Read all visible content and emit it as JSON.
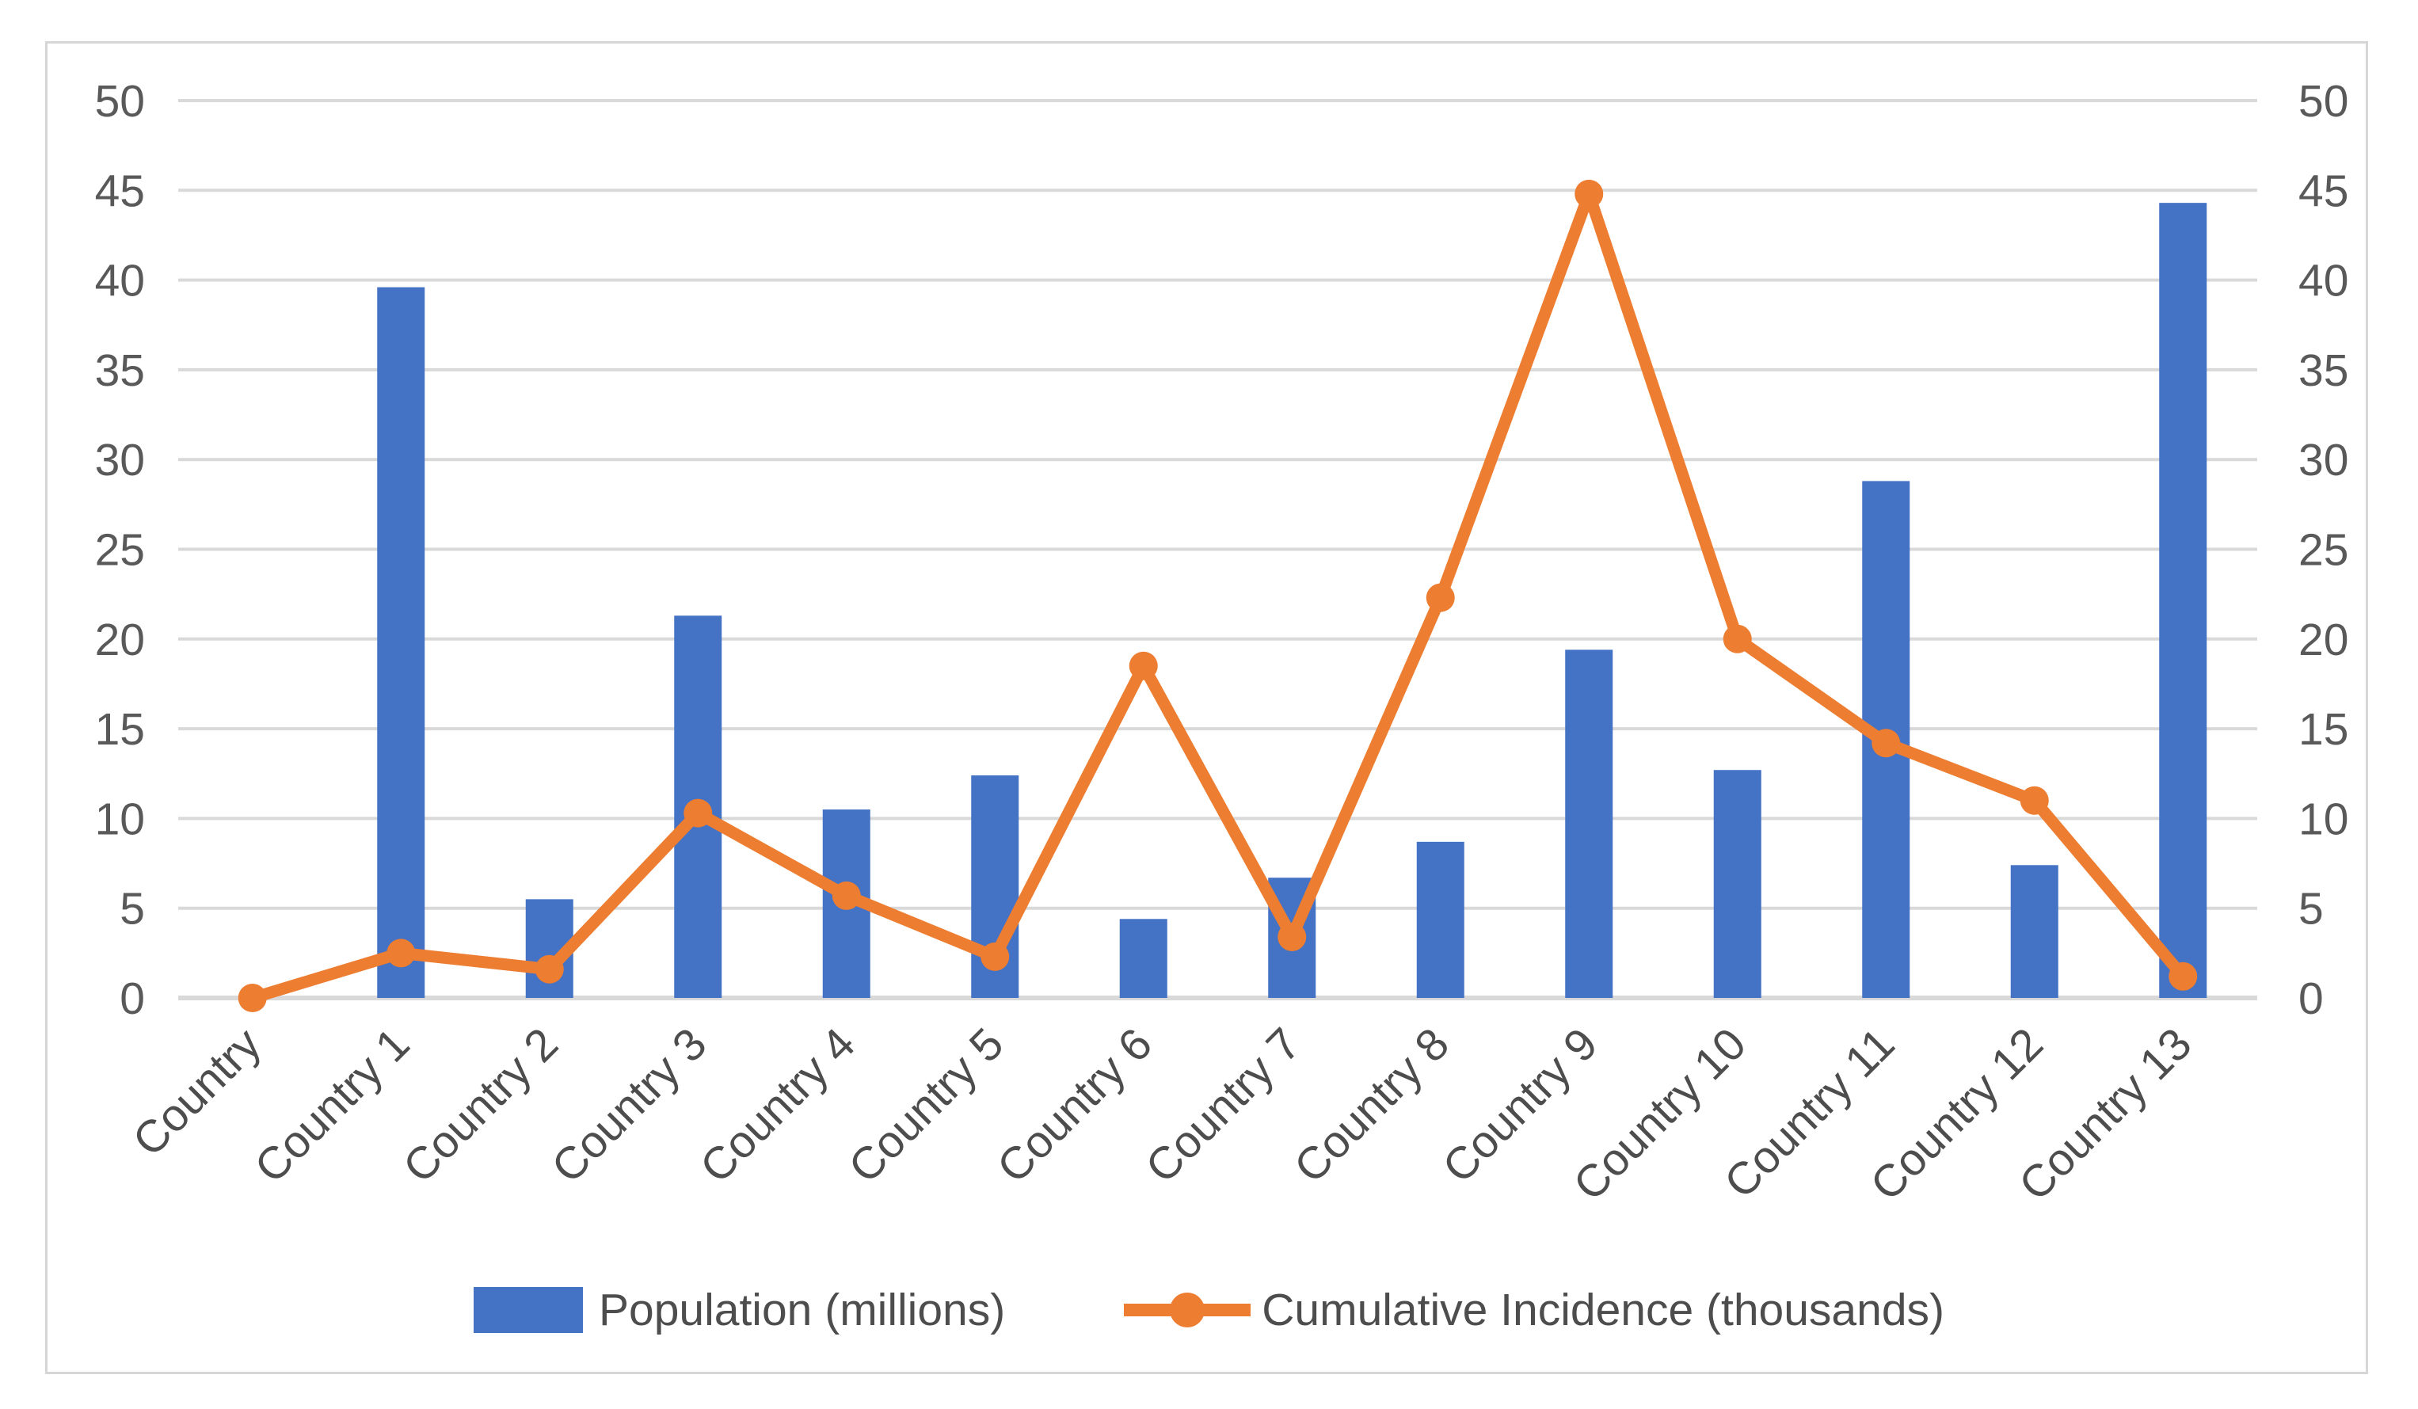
{
  "chart_data": {
    "type": "bar",
    "subtype": "combo-bar-line-dual-axis",
    "title": "",
    "xlabel": "",
    "ylabel": "",
    "categories": [
      "Country",
      "Country 1",
      "Country 2",
      "Country 3",
      "Country 4",
      "Country 5",
      "Country 6",
      "Country 7",
      "Country 8",
      "Country 9",
      "Country 10",
      "Country 11",
      "Country 12",
      "Country 13"
    ],
    "series": [
      {
        "name": "Population (millions)",
        "type": "bar",
        "axis": "left",
        "color": "#4472C4",
        "values": [
          0,
          39.6,
          5.5,
          21.3,
          10.5,
          12.4,
          4.4,
          6.7,
          8.7,
          19.4,
          12.7,
          28.8,
          7.4,
          44.3
        ]
      },
      {
        "name": "Cumulative Incidence (thousands)",
        "type": "line",
        "axis": "right",
        "color": "#ED7D31",
        "values": [
          0,
          2.5,
          1.6,
          10.3,
          5.7,
          2.3,
          18.5,
          3.4,
          22.3,
          44.8,
          20.0,
          14.2,
          11.0,
          1.2
        ]
      }
    ],
    "ylim": [
      0,
      50
    ],
    "ylim_right": [
      0,
      50
    ],
    "yticks": [
      0,
      5,
      10,
      15,
      20,
      25,
      30,
      35,
      40,
      45,
      50
    ],
    "grid": true,
    "legend_position": "bottom"
  },
  "colors": {
    "bar": "#4472C4",
    "line": "#ED7D31",
    "gridline": "#d9d9d9",
    "axis_tick_text": "#595959",
    "category_text": "#4d4d4d",
    "legend_text": "#4d4d4d",
    "frame_border": "#d6d6d6",
    "background": "#ffffff"
  }
}
